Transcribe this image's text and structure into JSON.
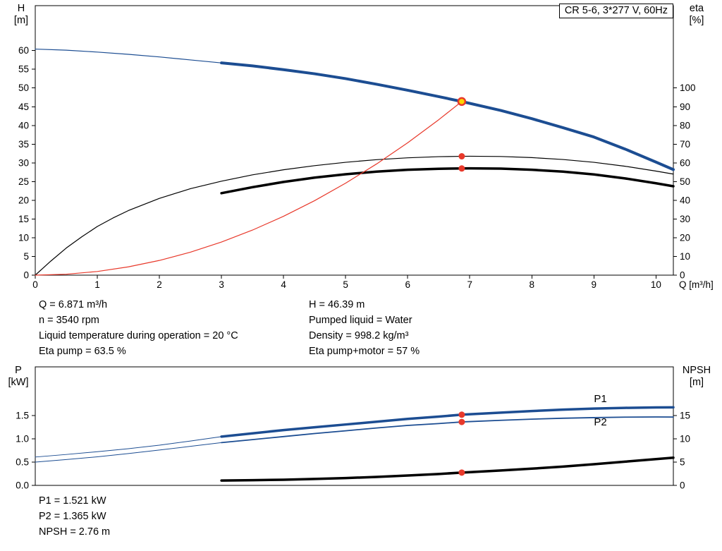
{
  "header": {
    "title_box": "CR 5-6, 3*277 V, 60Hz"
  },
  "axes": {
    "top_left": [
      "H",
      "[m]"
    ],
    "top_right": [
      "eta",
      "[%]"
    ],
    "bottom_left": [
      "P",
      "[kW]"
    ],
    "bottom_right": [
      "NPSH",
      "[m]"
    ]
  },
  "annotations": {
    "top_left": [
      "Q = 6.871 m³/h",
      "n = 3540 rpm",
      "Liquid temperature during operation = 20 °C",
      "Eta pump = 63.5 %"
    ],
    "top_right": [
      "H = 46.39 m",
      "Pumped liquid = Water",
      "Density = 998.2 kg/m³",
      "Eta pump+motor = 57 %"
    ],
    "bottom": [
      "P1 = 1.521 kW",
      "P2 = 1.365 kW",
      "NPSH = 2.76 m"
    ]
  },
  "colors": {
    "curve_blue": "#1c4d92",
    "curve_red": "#e8392b",
    "curve_black": "#000000",
    "duty_point_fill": "#ffd400",
    "frame": "#000000"
  },
  "operating_point": {
    "q_m3h": 6.871,
    "h_m": 46.39,
    "n_rpm": 3540,
    "eta_pump_pct": 63.5,
    "eta_pump_motor_pct": 57,
    "p1_kw": 1.521,
    "p2_kw": 1.365,
    "npsh_m": 2.76
  },
  "chart_data": [
    {
      "type": "line",
      "title": "CR 5-6, 3*277 V, 60Hz",
      "grid": false,
      "x": {
        "label": "Q [m³/h]",
        "min": 0,
        "max": 10.28,
        "tick_values": [
          0,
          1,
          2,
          3,
          4,
          5,
          6,
          7,
          8,
          9,
          10
        ],
        "tick_labels": [
          "0",
          "1",
          "2",
          "3",
          "4",
          "5",
          "6",
          "7",
          "8",
          "9",
          "10"
        ]
      },
      "y_left": {
        "label": "H [m]",
        "min": 0,
        "max": 72,
        "tick_values": [
          0,
          5,
          10,
          15,
          20,
          25,
          30,
          35,
          40,
          45,
          50,
          55,
          60
        ],
        "tick_labels": [
          "0",
          "5",
          "10",
          "15",
          "20",
          "25",
          "30",
          "35",
          "40",
          "45",
          "50",
          "55",
          "60"
        ]
      },
      "y_right": {
        "label": "eta [%]",
        "min": 0,
        "max": 144,
        "tick_values": [
          0,
          10,
          20,
          30,
          40,
          50,
          60,
          70,
          80,
          90,
          100
        ],
        "tick_labels": [
          "0",
          "10",
          "20",
          "30",
          "40",
          "50",
          "60",
          "70",
          "80",
          "90",
          "100"
        ]
      },
      "series": [
        {
          "name": "qh-curve-thin",
          "axis": "left",
          "color": "#1c4d92",
          "width": 1.2,
          "points": [
            [
              0,
              60.4
            ],
            [
              0.5,
              60.1
            ],
            [
              1,
              59.6
            ],
            [
              1.5,
              59.0
            ],
            [
              2,
              58.3
            ],
            [
              2.5,
              57.5
            ],
            [
              3,
              56.7
            ]
          ]
        },
        {
          "name": "qh-curve",
          "axis": "left",
          "color": "#1c4d92",
          "width": 4,
          "points": [
            [
              3,
              56.7
            ],
            [
              3.5,
              55.9
            ],
            [
              4,
              54.9
            ],
            [
              4.5,
              53.8
            ],
            [
              5,
              52.5
            ],
            [
              5.5,
              51.0
            ],
            [
              6,
              49.4
            ],
            [
              6.5,
              47.7
            ],
            [
              6.871,
              46.39
            ],
            [
              7.5,
              44.0
            ],
            [
              8,
              41.8
            ],
            [
              8.5,
              39.4
            ],
            [
              9,
              36.9
            ],
            [
              9.5,
              33.7
            ],
            [
              10,
              30.2
            ],
            [
              10.28,
              28.2
            ]
          ]
        },
        {
          "name": "eta-pump-curve",
          "axis": "right",
          "color": "#000000",
          "width": 1.2,
          "points": [
            [
              0,
              0
            ],
            [
              0.25,
              7.5
            ],
            [
              0.5,
              14.5
            ],
            [
              0.75,
              20.5
            ],
            [
              1,
              26
            ],
            [
              1.25,
              30.5
            ],
            [
              1.5,
              34.5
            ],
            [
              2,
              41
            ],
            [
              2.5,
              46.2
            ],
            [
              3,
              50.2
            ],
            [
              3.5,
              53.6
            ],
            [
              4,
              56.3
            ],
            [
              4.5,
              58.5
            ],
            [
              5,
              60.3
            ],
            [
              5.5,
              61.7
            ],
            [
              6,
              62.7
            ],
            [
              6.5,
              63.3
            ],
            [
              6.871,
              63.5
            ],
            [
              7,
              63.55
            ],
            [
              7.5,
              63.4
            ],
            [
              8,
              62.8
            ],
            [
              8.5,
              61.8
            ],
            [
              9,
              60.3
            ],
            [
              9.5,
              58.2
            ],
            [
              10,
              55.6
            ],
            [
              10.28,
              54.0
            ]
          ]
        },
        {
          "name": "eta-pump-motor-curve",
          "axis": "right",
          "color": "#000000",
          "width": 3.5,
          "points": [
            [
              3,
              43.8
            ],
            [
              3.5,
              47.0
            ],
            [
              4,
              49.8
            ],
            [
              4.5,
              52.1
            ],
            [
              5,
              53.9
            ],
            [
              5.5,
              55.3
            ],
            [
              6,
              56.3
            ],
            [
              6.5,
              56.85
            ],
            [
              6.871,
              57
            ],
            [
              7,
              57.05
            ],
            [
              7.5,
              56.9
            ],
            [
              8,
              56.3
            ],
            [
              8.5,
              55.3
            ],
            [
              9,
              53.8
            ],
            [
              9.5,
              51.7
            ],
            [
              10,
              49.1
            ],
            [
              10.28,
              47.5
            ]
          ]
        },
        {
          "name": "system-curve",
          "axis": "left",
          "color": "#e8392b",
          "width": 1.2,
          "points": [
            [
              0,
              0
            ],
            [
              0.5,
              0.25
            ],
            [
              1,
              0.98
            ],
            [
              1.5,
              2.21
            ],
            [
              2,
              3.93
            ],
            [
              2.5,
              6.14
            ],
            [
              3,
              8.84
            ],
            [
              3.5,
              12.04
            ],
            [
              4,
              15.72
            ],
            [
              4.5,
              19.9
            ],
            [
              5,
              24.57
            ],
            [
              5.5,
              29.72
            ],
            [
              6,
              35.37
            ],
            [
              6.5,
              41.52
            ],
            [
              6.871,
              46.39
            ]
          ]
        }
      ],
      "markers": [
        {
          "name": "eta-pump-point",
          "axis": "right",
          "q": 6.871,
          "v": 63.5,
          "r": 4.5,
          "fill": "#e8392b"
        },
        {
          "name": "eta-pump-motor-point",
          "axis": "right",
          "q": 6.871,
          "v": 57,
          "r": 4.5,
          "fill": "#e8392b"
        },
        {
          "name": "duty-point",
          "axis": "left",
          "q": 6.871,
          "v": 46.39,
          "r": 5,
          "fill": "#ffd400",
          "stroke": "#e8392b",
          "stroke_width": 2.5,
          "interactable": true
        }
      ],
      "curve_labels": []
    },
    {
      "type": "line",
      "title": "",
      "grid": false,
      "x": {
        "label": "",
        "min": 0,
        "max": 10.28,
        "tick_values": [],
        "tick_labels": []
      },
      "y_left": {
        "label": "P [kW]",
        "min": 0,
        "max": 2.55,
        "tick_values": [
          0,
          0.5,
          1,
          1.5
        ],
        "tick_labels": [
          "0.0",
          "0.5",
          "1.0",
          "1.5"
        ]
      },
      "y_right": {
        "label": "NPSH [m]",
        "min": 0,
        "max": 25.5,
        "tick_values": [
          0,
          5,
          10,
          15
        ],
        "tick_labels": [
          "0",
          "5",
          "10",
          "15"
        ]
      },
      "series": [
        {
          "name": "p1-curve-thin",
          "axis": "left",
          "color": "#1c4d92",
          "width": 1,
          "points": [
            [
              0,
              0.61
            ],
            [
              0.5,
              0.665
            ],
            [
              1,
              0.725
            ],
            [
              1.5,
              0.79
            ],
            [
              2,
              0.865
            ],
            [
              2.5,
              0.955
            ],
            [
              3,
              1.05
            ]
          ]
        },
        {
          "name": "p1-curve",
          "axis": "left",
          "color": "#1c4d92",
          "width": 3.5,
          "points": [
            [
              3,
              1.05
            ],
            [
              3.5,
              1.12
            ],
            [
              4,
              1.19
            ],
            [
              4.5,
              1.25
            ],
            [
              5,
              1.31
            ],
            [
              5.5,
              1.37
            ],
            [
              6,
              1.43
            ],
            [
              6.5,
              1.48
            ],
            [
              6.871,
              1.521
            ],
            [
              7.5,
              1.565
            ],
            [
              8,
              1.6
            ],
            [
              8.5,
              1.63
            ],
            [
              9,
              1.652
            ],
            [
              9.5,
              1.668
            ],
            [
              10,
              1.678
            ],
            [
              10.28,
              1.68
            ]
          ]
        },
        {
          "name": "p2-curve-thin",
          "axis": "left",
          "color": "#1c4d92",
          "width": 1,
          "points": [
            [
              0,
              0.5
            ],
            [
              0.5,
              0.555
            ],
            [
              1,
              0.615
            ],
            [
              1.5,
              0.685
            ],
            [
              2,
              0.76
            ],
            [
              2.5,
              0.84
            ],
            [
              3,
              0.92
            ]
          ]
        },
        {
          "name": "p2-curve",
          "axis": "left",
          "color": "#1c4d92",
          "width": 1.8,
          "points": [
            [
              3,
              0.92
            ],
            [
              3.5,
              0.985
            ],
            [
              4,
              1.05
            ],
            [
              4.5,
              1.115
            ],
            [
              5,
              1.175
            ],
            [
              5.5,
              1.235
            ],
            [
              6,
              1.29
            ],
            [
              6.5,
              1.33
            ],
            [
              6.871,
              1.365
            ],
            [
              7.5,
              1.4
            ],
            [
              8,
              1.425
            ],
            [
              8.5,
              1.445
            ],
            [
              9,
              1.458
            ],
            [
              9.5,
              1.468
            ],
            [
              10,
              1.472
            ],
            [
              10.28,
              1.47
            ]
          ]
        },
        {
          "name": "npsh-curve",
          "axis": "right",
          "color": "#000000",
          "width": 3.5,
          "points": [
            [
              3,
              1.05
            ],
            [
              3.5,
              1.12
            ],
            [
              4,
              1.22
            ],
            [
              4.5,
              1.38
            ],
            [
              5,
              1.58
            ],
            [
              5.5,
              1.82
            ],
            [
              6,
              2.12
            ],
            [
              6.5,
              2.45
            ],
            [
              6.871,
              2.76
            ],
            [
              7.5,
              3.2
            ],
            [
              8,
              3.6
            ],
            [
              8.5,
              4.05
            ],
            [
              9,
              4.55
            ],
            [
              9.5,
              5.1
            ],
            [
              10,
              5.65
            ],
            [
              10.28,
              5.95
            ]
          ]
        }
      ],
      "markers": [
        {
          "name": "p1-point",
          "axis": "left",
          "q": 6.871,
          "v": 1.521,
          "r": 4.5,
          "fill": "#e8392b"
        },
        {
          "name": "p2-point",
          "axis": "left",
          "q": 6.871,
          "v": 1.365,
          "r": 4.5,
          "fill": "#e8392b"
        },
        {
          "name": "npsh-point",
          "axis": "right",
          "q": 6.871,
          "v": 2.76,
          "r": 4.5,
          "fill": "#e8392b"
        }
      ],
      "curve_labels": [
        {
          "text": "P1",
          "axis": "left",
          "q": 9.0,
          "v": 1.652,
          "dy": -9,
          "color": "#1c4d92"
        },
        {
          "text": "P2",
          "axis": "left",
          "q": 9.0,
          "v": 1.458,
          "dy": 11,
          "color": "#1c4d92"
        }
      ]
    }
  ]
}
